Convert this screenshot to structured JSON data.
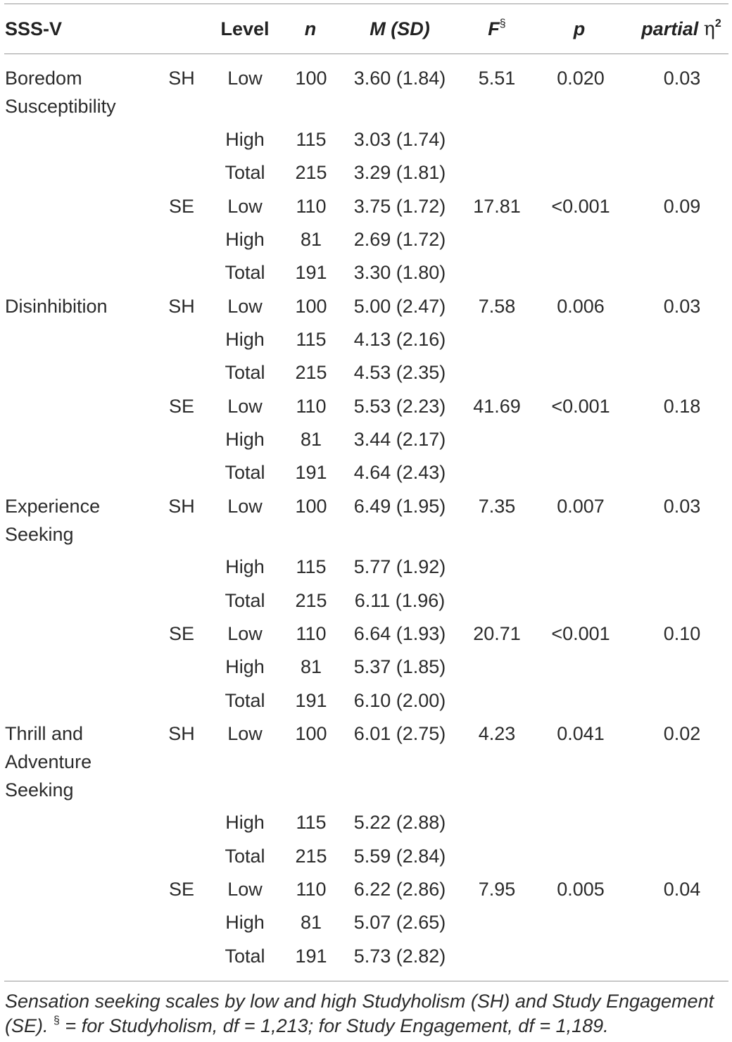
{
  "table": {
    "headers": {
      "scale": "SSS-V",
      "level": "Level",
      "n": "n",
      "msd": "M (SD)",
      "f": "F",
      "f_mark": "§",
      "p": "p",
      "eta_prefix": "partial ",
      "eta_symbol": "η",
      "eta_exp": "2"
    },
    "rows": [
      {
        "scale": "Boredom",
        "scale2": "Susceptibility",
        "group": "SH",
        "level": "Low",
        "n": "100",
        "msd": "3.60 (1.84)",
        "f": "5.51",
        "p": "0.020",
        "eta": "0.03"
      },
      {
        "level": "High",
        "n": "115",
        "msd": "3.03 (1.74)"
      },
      {
        "level": "Total",
        "n": "215",
        "msd": "3.29 (1.81)"
      },
      {
        "group": "SE",
        "level": "Low",
        "n": "110",
        "msd": "3.75 (1.72)",
        "f": "17.81",
        "p": "<0.001",
        "eta": "0.09"
      },
      {
        "level": "High",
        "n": "81",
        "msd": "2.69 (1.72)"
      },
      {
        "level": "Total",
        "n": "191",
        "msd": "3.30 (1.80)"
      },
      {
        "scale": "Disinhibition",
        "group": "SH",
        "level": "Low",
        "n": "100",
        "msd": "5.00 (2.47)",
        "f": "7.58",
        "p": "0.006",
        "eta": "0.03"
      },
      {
        "level": "High",
        "n": "115",
        "msd": "4.13 (2.16)"
      },
      {
        "level": "Total",
        "n": "215",
        "msd": "4.53 (2.35)"
      },
      {
        "group": "SE",
        "level": "Low",
        "n": "110",
        "msd": "5.53 (2.23)",
        "f": "41.69",
        "p": "<0.001",
        "eta": "0.18"
      },
      {
        "level": "High",
        "n": "81",
        "msd": "3.44 (2.17)"
      },
      {
        "level": "Total",
        "n": "191",
        "msd": "4.64 (2.43)"
      },
      {
        "scale": "Experience",
        "scale2": "Seeking",
        "group": "SH",
        "level": "Low",
        "n": "100",
        "msd": "6.49 (1.95)",
        "f": "7.35",
        "p": "0.007",
        "eta": "0.03"
      },
      {
        "level": "High",
        "n": "115",
        "msd": "5.77 (1.92)"
      },
      {
        "level": "Total",
        "n": "215",
        "msd": "6.11 (1.96)"
      },
      {
        "group": "SE",
        "level": "Low",
        "n": "110",
        "msd": "6.64 (1.93)",
        "f": "20.71",
        "p": "<0.001",
        "eta": "0.10"
      },
      {
        "level": "High",
        "n": "81",
        "msd": "5.37 (1.85)"
      },
      {
        "level": "Total",
        "n": "191",
        "msd": "6.10 (2.00)"
      },
      {
        "scale": "Thrill and",
        "scale2": "Adventure",
        "scale3": "Seeking",
        "group": "SH",
        "level": "Low",
        "n": "100",
        "msd": "6.01 (2.75)",
        "f": "4.23",
        "p": "0.041",
        "eta": "0.02"
      },
      {
        "level": "High",
        "n": "115",
        "msd": "5.22 (2.88)"
      },
      {
        "level": "Total",
        "n": "215",
        "msd": "5.59 (2.84)"
      },
      {
        "group": "SE",
        "level": "Low",
        "n": "110",
        "msd": "6.22 (2.86)",
        "f": "7.95",
        "p": "0.005",
        "eta": "0.04"
      },
      {
        "level": "High",
        "n": "81",
        "msd": "5.07 (2.65)"
      },
      {
        "level": "Total",
        "n": "191",
        "msd": "5.73 (2.82)"
      }
    ]
  },
  "note": {
    "line1": "Sensation seeking scales by low and high Studyholism (SH) and Study Engagement",
    "line2_a": "(SE). ",
    "mark": "§",
    "line2_b": "  = for Studyholism, df = 1,213; for Study Engagement, df = 1,189."
  }
}
